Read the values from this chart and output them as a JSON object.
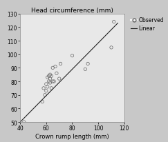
{
  "title": "Head circumference (mm)",
  "xlabel": "Crown rump length (mm)",
  "ylabel": "",
  "xlim": [
    40,
    120
  ],
  "ylim": [
    50,
    130
  ],
  "xticks": [
    40,
    60,
    80,
    100,
    120
  ],
  "yticks": [
    50,
    60,
    70,
    80,
    90,
    100,
    110,
    120,
    130
  ],
  "scatter_x": [
    42,
    43,
    57,
    58,
    59,
    60,
    60,
    61,
    61,
    62,
    62,
    63,
    63,
    63,
    64,
    64,
    65,
    65,
    66,
    67,
    68,
    70,
    71,
    80,
    90,
    92,
    110,
    112
  ],
  "scatter_y": [
    46,
    50,
    65,
    75,
    70,
    73,
    78,
    76,
    83,
    80,
    84,
    79,
    82,
    85,
    84,
    75,
    80,
    90,
    80,
    91,
    86,
    82,
    93,
    99,
    89,
    93,
    105,
    124
  ],
  "line_x": [
    40,
    115
  ],
  "line_y": [
    50,
    123
  ],
  "fig_bg_color": "#c8c8c8",
  "plot_bg_color": "#e8e8e8",
  "scatter_color": "none",
  "scatter_edgecolor": "#666666",
  "line_color": "#222222",
  "title_fontsize": 6.5,
  "label_fontsize": 6,
  "tick_fontsize": 5.5,
  "legend_fontsize": 5.5
}
